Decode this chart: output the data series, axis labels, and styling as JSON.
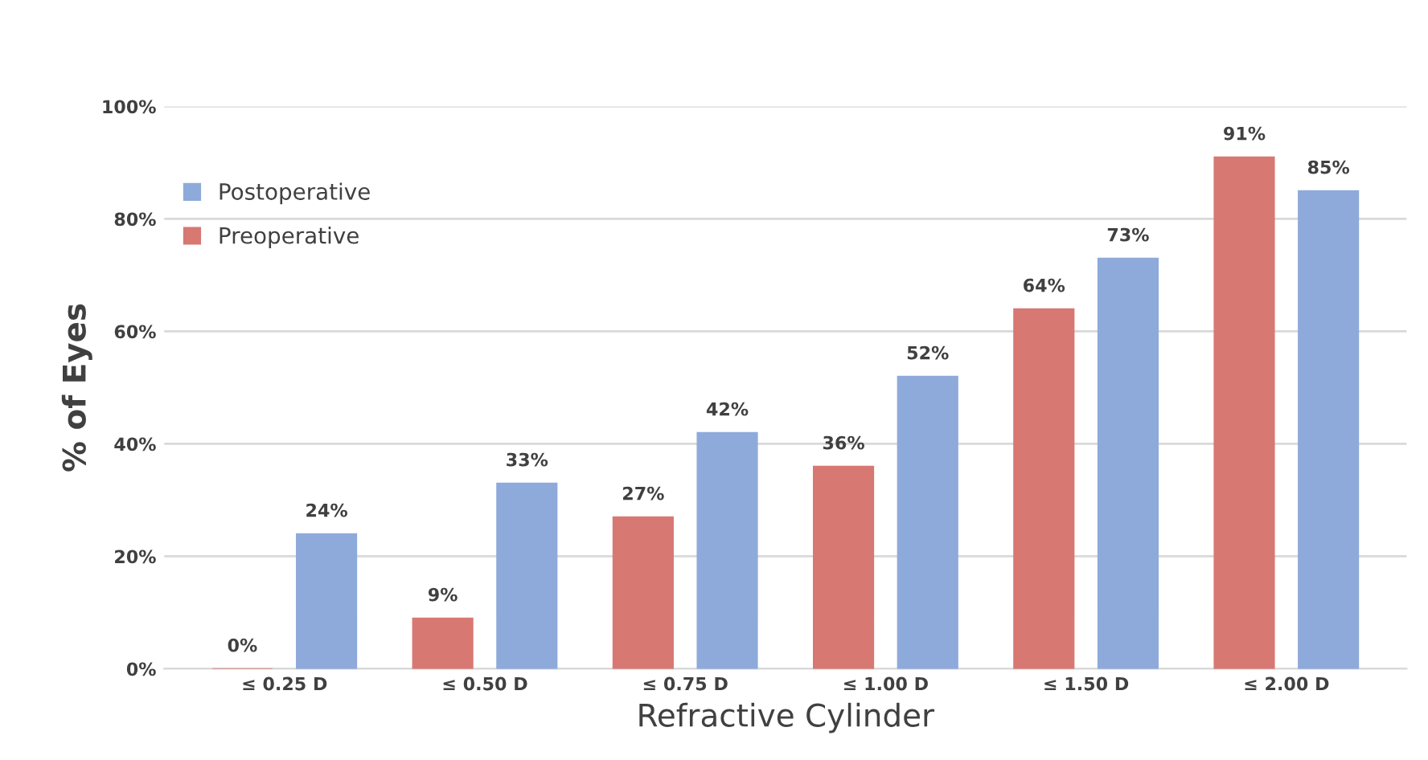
{
  "chart_data": {
    "type": "bar",
    "xlabel": "Refractive Cylinder",
    "ylabel": "% of Eyes",
    "categories": [
      "≤ 0.25 D",
      "≤ 0.50 D",
      "≤ 0.75 D",
      "≤ 1.00 D",
      "≤ 1.50 D",
      "≤ 2.00 D"
    ],
    "series": [
      {
        "name": "Preoperative",
        "color": "#d77873",
        "values": [
          0,
          9,
          27,
          36,
          64,
          91
        ],
        "value_labels": [
          "0%",
          "9%",
          "27%",
          "36%",
          "64%",
          "91%"
        ]
      },
      {
        "name": "Postoperative",
        "color": "#8eaadb",
        "values": [
          24,
          33,
          42,
          52,
          73,
          85
        ],
        "value_labels": [
          "24%",
          "33%",
          "42%",
          "52%",
          "73%",
          "85%"
        ]
      }
    ],
    "ylim": [
      0,
      100
    ],
    "yticks": [
      {
        "value": 0,
        "label": "0%"
      },
      {
        "value": 20,
        "label": "20%"
      },
      {
        "value": 40,
        "label": "40%"
      },
      {
        "value": 60,
        "label": "60%"
      },
      {
        "value": 80,
        "label": "80%"
      },
      {
        "value": 100,
        "label": "100%"
      }
    ],
    "grid": "y",
    "legend": "top left"
  }
}
